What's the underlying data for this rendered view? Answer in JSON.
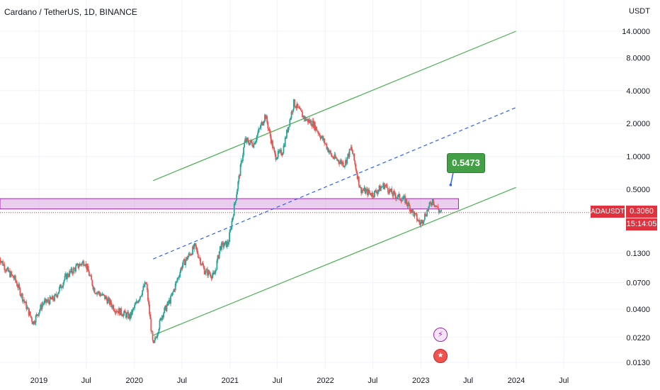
{
  "header": {
    "title": "Cardano / TetherUS, 1D, BINANCE",
    "unit": "USDT"
  },
  "price_axis": {
    "labels": [
      "14.0000",
      "8.0000",
      "4.0000",
      "2.0000",
      "1.0000",
      "0.5000",
      "0.1300",
      "0.0700",
      "0.0400",
      "0.0220",
      "0.0130"
    ],
    "label_values": [
      14,
      8,
      4,
      2,
      1,
      0.5,
      0.13,
      0.07,
      0.04,
      0.022,
      0.013
    ]
  },
  "current": {
    "symbol": "ADAUSDT",
    "price": "0.3060",
    "countdown": "15:14:05"
  },
  "callout": {
    "value": "0.5473"
  },
  "events": [
    {
      "icon": "lightning-icon",
      "glyph": "⚡"
    },
    {
      "icon": "us-flag-icon",
      "glyph": "★"
    }
  ],
  "chart_data": {
    "type": "candlestick",
    "scale": "log",
    "ylim": [
      0.011,
      20
    ],
    "time_axis": {
      "labels": [
        "2019",
        "Jul",
        "2020",
        "Jul",
        "2021",
        "Jul",
        "2022",
        "Jul",
        "2023",
        "Jul",
        "2024",
        "Jul"
      ],
      "dates": [
        "2019-01-01",
        "2019-07-01",
        "2020-01-01",
        "2020-07-01",
        "2021-01-01",
        "2021-07-01",
        "2022-01-01",
        "2022-07-01",
        "2023-01-01",
        "2023-07-01",
        "2024-01-01",
        "2024-07-01"
      ]
    },
    "price_path": [
      [
        "2018-08-01",
        0.12
      ],
      [
        "2018-09-01",
        0.09
      ],
      [
        "2018-10-01",
        0.075
      ],
      [
        "2018-11-01",
        0.05
      ],
      [
        "2018-12-10",
        0.03
      ],
      [
        "2019-01-15",
        0.045
      ],
      [
        "2019-03-01",
        0.05
      ],
      [
        "2019-04-15",
        0.08
      ],
      [
        "2019-06-01",
        0.1
      ],
      [
        "2019-06-25",
        0.11
      ],
      [
        "2019-08-01",
        0.06
      ],
      [
        "2019-09-15",
        0.05
      ],
      [
        "2019-10-20",
        0.04
      ],
      [
        "2019-12-15",
        0.034
      ],
      [
        "2020-02-15",
        0.07
      ],
      [
        "2020-03-13",
        0.018
      ],
      [
        "2020-04-15",
        0.035
      ],
      [
        "2020-05-20",
        0.05
      ],
      [
        "2020-07-01",
        0.1
      ],
      [
        "2020-08-20",
        0.15
      ],
      [
        "2020-09-25",
        0.09
      ],
      [
        "2020-11-01",
        0.08
      ],
      [
        "2020-11-25",
        0.15
      ],
      [
        "2020-12-25",
        0.16
      ],
      [
        "2021-01-20",
        0.38
      ],
      [
        "2021-02-27",
        1.4
      ],
      [
        "2021-04-01",
        1.3
      ],
      [
        "2021-05-16",
        2.4
      ],
      [
        "2021-06-22",
        1.0
      ],
      [
        "2021-07-20",
        1.1
      ],
      [
        "2021-09-02",
        3.1
      ],
      [
        "2021-10-15",
        2.2
      ],
      [
        "2021-11-15",
        2.0
      ],
      [
        "2022-01-01",
        1.3
      ],
      [
        "2022-01-25",
        1.0
      ],
      [
        "2022-03-15",
        0.85
      ],
      [
        "2022-04-10",
        1.2
      ],
      [
        "2022-05-15",
        0.5
      ],
      [
        "2022-07-01",
        0.45
      ],
      [
        "2022-08-15",
        0.55
      ],
      [
        "2022-09-15",
        0.45
      ],
      [
        "2022-11-01",
        0.4
      ],
      [
        "2022-12-30",
        0.24
      ],
      [
        "2023-02-15",
        0.4
      ],
      [
        "2023-03-10",
        0.32
      ],
      [
        "2023-03-22",
        0.306
      ]
    ],
    "trend_channel": {
      "upper": {
        "start": [
          "2020-03-13",
          0.6
        ],
        "end": [
          "2023-12-31",
          14
        ]
      },
      "middle": {
        "start": [
          "2020-03-13",
          0.115
        ],
        "end": [
          "2023-12-31",
          2.8
        ]
      },
      "lower": {
        "start": [
          "2020-03-13",
          0.023
        ],
        "end": [
          "2023-12-31",
          0.52
        ]
      }
    },
    "zone": {
      "low": 0.33,
      "high": 0.41
    },
    "current_price": 0.306,
    "annotation_price": 0.5473
  },
  "colors": {
    "bull": "#26a69a",
    "bear": "#ef5350",
    "channel": "#4caf50",
    "median": "#2962ff",
    "zone_fill": "#ce93d8",
    "zone_border": "#9c27b0",
    "price_line": "#e0313f",
    "grid": "#f0f3fa"
  }
}
